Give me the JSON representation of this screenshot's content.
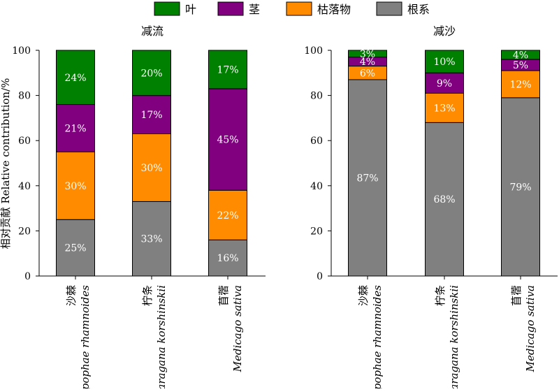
{
  "legend": [
    {
      "label": "叶",
      "color": "#008000"
    },
    {
      "label": "茎",
      "color": "#800080"
    },
    {
      "label": "枯落物",
      "color": "#FF8C00"
    },
    {
      "label": "根系",
      "color": "#808080"
    }
  ],
  "ylabel": "相对贡献 Relative contribution/%",
  "chart_data": [
    {
      "type": "bar",
      "stacked": true,
      "title": "减流",
      "ylim": [
        0,
        100
      ],
      "yticks": [
        0,
        20,
        40,
        60,
        80,
        100
      ],
      "categories": [
        {
          "cn": "沙棘",
          "latin": "Hippophae rhamnoides"
        },
        {
          "cn": "柠条",
          "latin": "Caragana korshinskii"
        },
        {
          "cn": "苜蓿",
          "latin": "Medicago sativa"
        }
      ],
      "series": [
        {
          "name": "根系",
          "values": [
            25,
            33,
            16
          ],
          "labels": [
            "25%",
            "33%",
            "16%"
          ]
        },
        {
          "name": "枯落物",
          "values": [
            30,
            30,
            22
          ],
          "labels": [
            "30%",
            "30%",
            "22%"
          ]
        },
        {
          "name": "茎",
          "values": [
            21,
            17,
            45
          ],
          "labels": [
            "21%",
            "17%",
            "45%"
          ]
        },
        {
          "name": "叶",
          "values": [
            24,
            20,
            17
          ],
          "labels": [
            "24%",
            "20%",
            "17%"
          ]
        }
      ]
    },
    {
      "type": "bar",
      "stacked": true,
      "title": "减沙",
      "ylim": [
        0,
        100
      ],
      "yticks": [
        0,
        20,
        40,
        60,
        80,
        100
      ],
      "categories": [
        {
          "cn": "沙棘",
          "latin": "Hippophae rhamnoides"
        },
        {
          "cn": "柠条",
          "latin": "Caragana korshinskii"
        },
        {
          "cn": "苜蓿",
          "latin": "Medicago sativa"
        }
      ],
      "series": [
        {
          "name": "根系",
          "values": [
            87,
            68,
            79
          ],
          "labels": [
            "87%",
            "68%",
            "79%"
          ]
        },
        {
          "name": "枯落物",
          "values": [
            6,
            13,
            12
          ],
          "labels": [
            "6%",
            "13%",
            "12%"
          ]
        },
        {
          "name": "茎",
          "values": [
            4,
            9,
            5
          ],
          "labels": [
            "4%",
            "9%",
            "5%"
          ]
        },
        {
          "name": "叶",
          "values": [
            3,
            10,
            4
          ],
          "labels": [
            "3%",
            "10%",
            "4%"
          ]
        }
      ]
    }
  ]
}
